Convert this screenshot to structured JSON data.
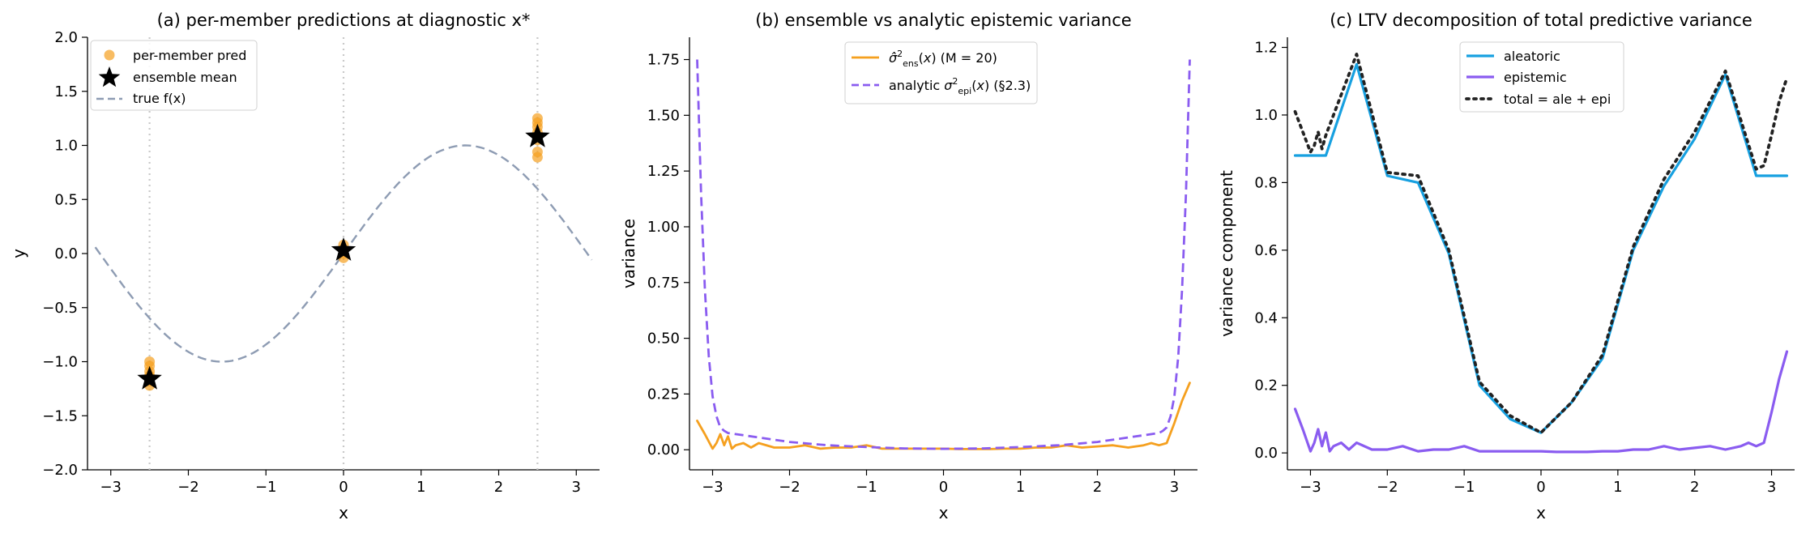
{
  "colors": {
    "orange": "#f5a01f",
    "purple": "#8a5cf0",
    "slate": "#8e9cb3",
    "blue": "#17a0e0",
    "dark": "#222222",
    "star": "#000000",
    "guide": "#c9c9c9"
  },
  "chart_data": [
    {
      "type": "scatter",
      "title": "(a) per-member predictions at diagnostic x*",
      "xlabel": "x",
      "ylabel": "y",
      "xlim": [
        -3.3,
        3.3
      ],
      "ylim": [
        -2.0,
        2.0
      ],
      "xticks": [
        -3,
        -2,
        -1,
        0,
        1,
        2,
        3
      ],
      "yticks": [
        -2.0,
        -1.5,
        -1.0,
        -0.5,
        0.0,
        0.5,
        1.0,
        1.5,
        2.0
      ],
      "diagnostic_x": [
        -2.5,
        0.0,
        2.5
      ],
      "member_points": [
        {
          "x": -2.5,
          "y": -1.22
        },
        {
          "x": -2.5,
          "y": -1.18
        },
        {
          "x": -2.5,
          "y": -1.13
        },
        {
          "x": -2.5,
          "y": -1.09
        },
        {
          "x": -2.5,
          "y": -1.04
        },
        {
          "x": -2.5,
          "y": -1.0
        },
        {
          "x": 0.0,
          "y": -0.04
        },
        {
          "x": 0.0,
          "y": 0.0
        },
        {
          "x": 0.0,
          "y": 0.04
        },
        {
          "x": 0.0,
          "y": 0.08
        },
        {
          "x": 2.5,
          "y": 0.89
        },
        {
          "x": 2.5,
          "y": 0.94
        },
        {
          "x": 2.5,
          "y": 1.05
        },
        {
          "x": 2.5,
          "y": 1.12
        },
        {
          "x": 2.5,
          "y": 1.17
        },
        {
          "x": 2.5,
          "y": 1.21
        },
        {
          "x": 2.5,
          "y": 1.25
        }
      ],
      "ensemble_mean": [
        {
          "x": -2.5,
          "y": -1.16
        },
        {
          "x": 0.0,
          "y": 0.03
        },
        {
          "x": 2.5,
          "y": 1.08
        }
      ],
      "true_function": "sin(x)",
      "true_x_range": [
        -3.2,
        3.2
      ],
      "legend": [
        "per-member pred",
        "ensemble mean",
        "true f(x)"
      ],
      "legend_position": "upper-left"
    },
    {
      "type": "line",
      "title": "(b) ensemble vs analytic epistemic variance",
      "xlabel": "x",
      "ylabel": "variance",
      "xlim": [
        -3.3,
        3.3
      ],
      "ylim": [
        -0.09,
        1.85
      ],
      "xticks": [
        -3,
        -2,
        -1,
        0,
        1,
        2,
        3
      ],
      "yticks": [
        0.0,
        0.25,
        0.5,
        0.75,
        1.0,
        1.25,
        1.5,
        1.75
      ],
      "legend_position": "upper-center",
      "series": [
        {
          "name": "σ̂²ens(x) (M = 20)",
          "style": "solid",
          "x": [
            -3.2,
            -3.1,
            -3.0,
            -2.95,
            -2.9,
            -2.85,
            -2.8,
            -2.75,
            -2.7,
            -2.6,
            -2.5,
            -2.4,
            -2.2,
            -2.0,
            -1.8,
            -1.6,
            -1.4,
            -1.2,
            -1.0,
            -0.8,
            -0.6,
            -0.4,
            -0.2,
            0.0,
            0.2,
            0.4,
            0.6,
            0.8,
            1.0,
            1.2,
            1.4,
            1.6,
            1.8,
            2.0,
            2.2,
            2.4,
            2.6,
            2.7,
            2.8,
            2.9,
            3.0,
            3.1,
            3.2
          ],
          "y": [
            0.13,
            0.07,
            0.005,
            0.03,
            0.07,
            0.02,
            0.06,
            0.005,
            0.02,
            0.03,
            0.01,
            0.03,
            0.01,
            0.01,
            0.02,
            0.005,
            0.01,
            0.01,
            0.02,
            0.005,
            0.005,
            0.005,
            0.005,
            0.005,
            0.003,
            0.003,
            0.003,
            0.005,
            0.005,
            0.01,
            0.01,
            0.02,
            0.01,
            0.015,
            0.02,
            0.01,
            0.02,
            0.03,
            0.02,
            0.03,
            0.12,
            0.22,
            0.3
          ]
        },
        {
          "name": "analytic σ²epi(x) (§2.3)",
          "style": "dashed",
          "x": [
            -3.2,
            -3.15,
            -3.1,
            -3.05,
            -3.0,
            -2.95,
            -2.9,
            -2.85,
            -2.8,
            -2.6,
            -2.4,
            -2.0,
            -1.5,
            -1.0,
            -0.5,
            0.0,
            0.5,
            1.0,
            1.5,
            2.0,
            2.4,
            2.6,
            2.8,
            2.85,
            2.9,
            2.95,
            3.0,
            3.05,
            3.1,
            3.15,
            3.2
          ],
          "y": [
            1.75,
            1.15,
            0.72,
            0.42,
            0.24,
            0.15,
            0.1,
            0.085,
            0.075,
            0.065,
            0.055,
            0.035,
            0.02,
            0.012,
            0.006,
            0.004,
            0.006,
            0.012,
            0.02,
            0.035,
            0.055,
            0.065,
            0.075,
            0.085,
            0.1,
            0.15,
            0.24,
            0.42,
            0.72,
            1.15,
            1.75
          ]
        }
      ],
      "legend": [
        "σ̂²ens(x) (M = 20)",
        "analytic σ²epi(x) (§2.3)"
      ]
    },
    {
      "type": "line",
      "title": "(c) LTV decomposition of total predictive variance",
      "xlabel": "x",
      "ylabel": "variance component",
      "xlim": [
        -3.3,
        3.3
      ],
      "ylim": [
        -0.05,
        1.23
      ],
      "xticks": [
        -3,
        -2,
        -1,
        0,
        1,
        2,
        3
      ],
      "yticks": [
        0.0,
        0.2,
        0.4,
        0.6,
        0.8,
        1.0,
        1.2
      ],
      "legend_position": "upper-center",
      "series": [
        {
          "name": "aleatoric",
          "style": "solid",
          "x": [
            -3.2,
            -2.8,
            -2.4,
            -2.0,
            -1.6,
            -1.2,
            -0.8,
            -0.4,
            0.0,
            0.4,
            0.8,
            1.2,
            1.6,
            2.0,
            2.4,
            2.8,
            3.2
          ],
          "y": [
            0.88,
            0.88,
            1.15,
            0.82,
            0.8,
            0.59,
            0.2,
            0.1,
            0.06,
            0.15,
            0.28,
            0.6,
            0.79,
            0.93,
            1.12,
            0.82,
            0.82
          ]
        },
        {
          "name": "epistemic",
          "style": "solid",
          "x": [
            -3.2,
            -3.1,
            -3.0,
            -2.95,
            -2.9,
            -2.85,
            -2.8,
            -2.75,
            -2.7,
            -2.6,
            -2.5,
            -2.4,
            -2.2,
            -2.0,
            -1.8,
            -1.6,
            -1.4,
            -1.2,
            -1.0,
            -0.8,
            -0.6,
            -0.4,
            -0.2,
            0.0,
            0.2,
            0.4,
            0.6,
            0.8,
            1.0,
            1.2,
            1.4,
            1.6,
            1.8,
            2.0,
            2.2,
            2.4,
            2.6,
            2.7,
            2.8,
            2.9,
            3.0,
            3.1,
            3.2
          ],
          "y": [
            0.13,
            0.07,
            0.005,
            0.03,
            0.07,
            0.02,
            0.06,
            0.005,
            0.02,
            0.03,
            0.01,
            0.03,
            0.01,
            0.01,
            0.02,
            0.005,
            0.01,
            0.01,
            0.02,
            0.005,
            0.005,
            0.005,
            0.005,
            0.005,
            0.003,
            0.003,
            0.003,
            0.005,
            0.005,
            0.01,
            0.01,
            0.02,
            0.01,
            0.015,
            0.02,
            0.01,
            0.02,
            0.03,
            0.02,
            0.03,
            0.12,
            0.22,
            0.3
          ]
        },
        {
          "name": "total = ale + epi",
          "style": "dotted",
          "x": [
            -3.2,
            -3.0,
            -2.95,
            -2.9,
            -2.85,
            -2.8,
            -2.4,
            -2.0,
            -1.6,
            -1.2,
            -0.8,
            -0.4,
            0.0,
            0.4,
            0.8,
            1.2,
            1.6,
            2.0,
            2.4,
            2.8,
            2.9,
            3.0,
            3.1,
            3.2
          ],
          "y": [
            1.01,
            0.89,
            0.91,
            0.95,
            0.9,
            0.94,
            1.18,
            0.83,
            0.82,
            0.6,
            0.21,
            0.11,
            0.06,
            0.15,
            0.29,
            0.61,
            0.81,
            0.95,
            1.13,
            0.84,
            0.85,
            0.94,
            1.04,
            1.11
          ]
        }
      ],
      "legend": [
        "aleatoric",
        "epistemic",
        "total = ale + epi"
      ]
    }
  ]
}
